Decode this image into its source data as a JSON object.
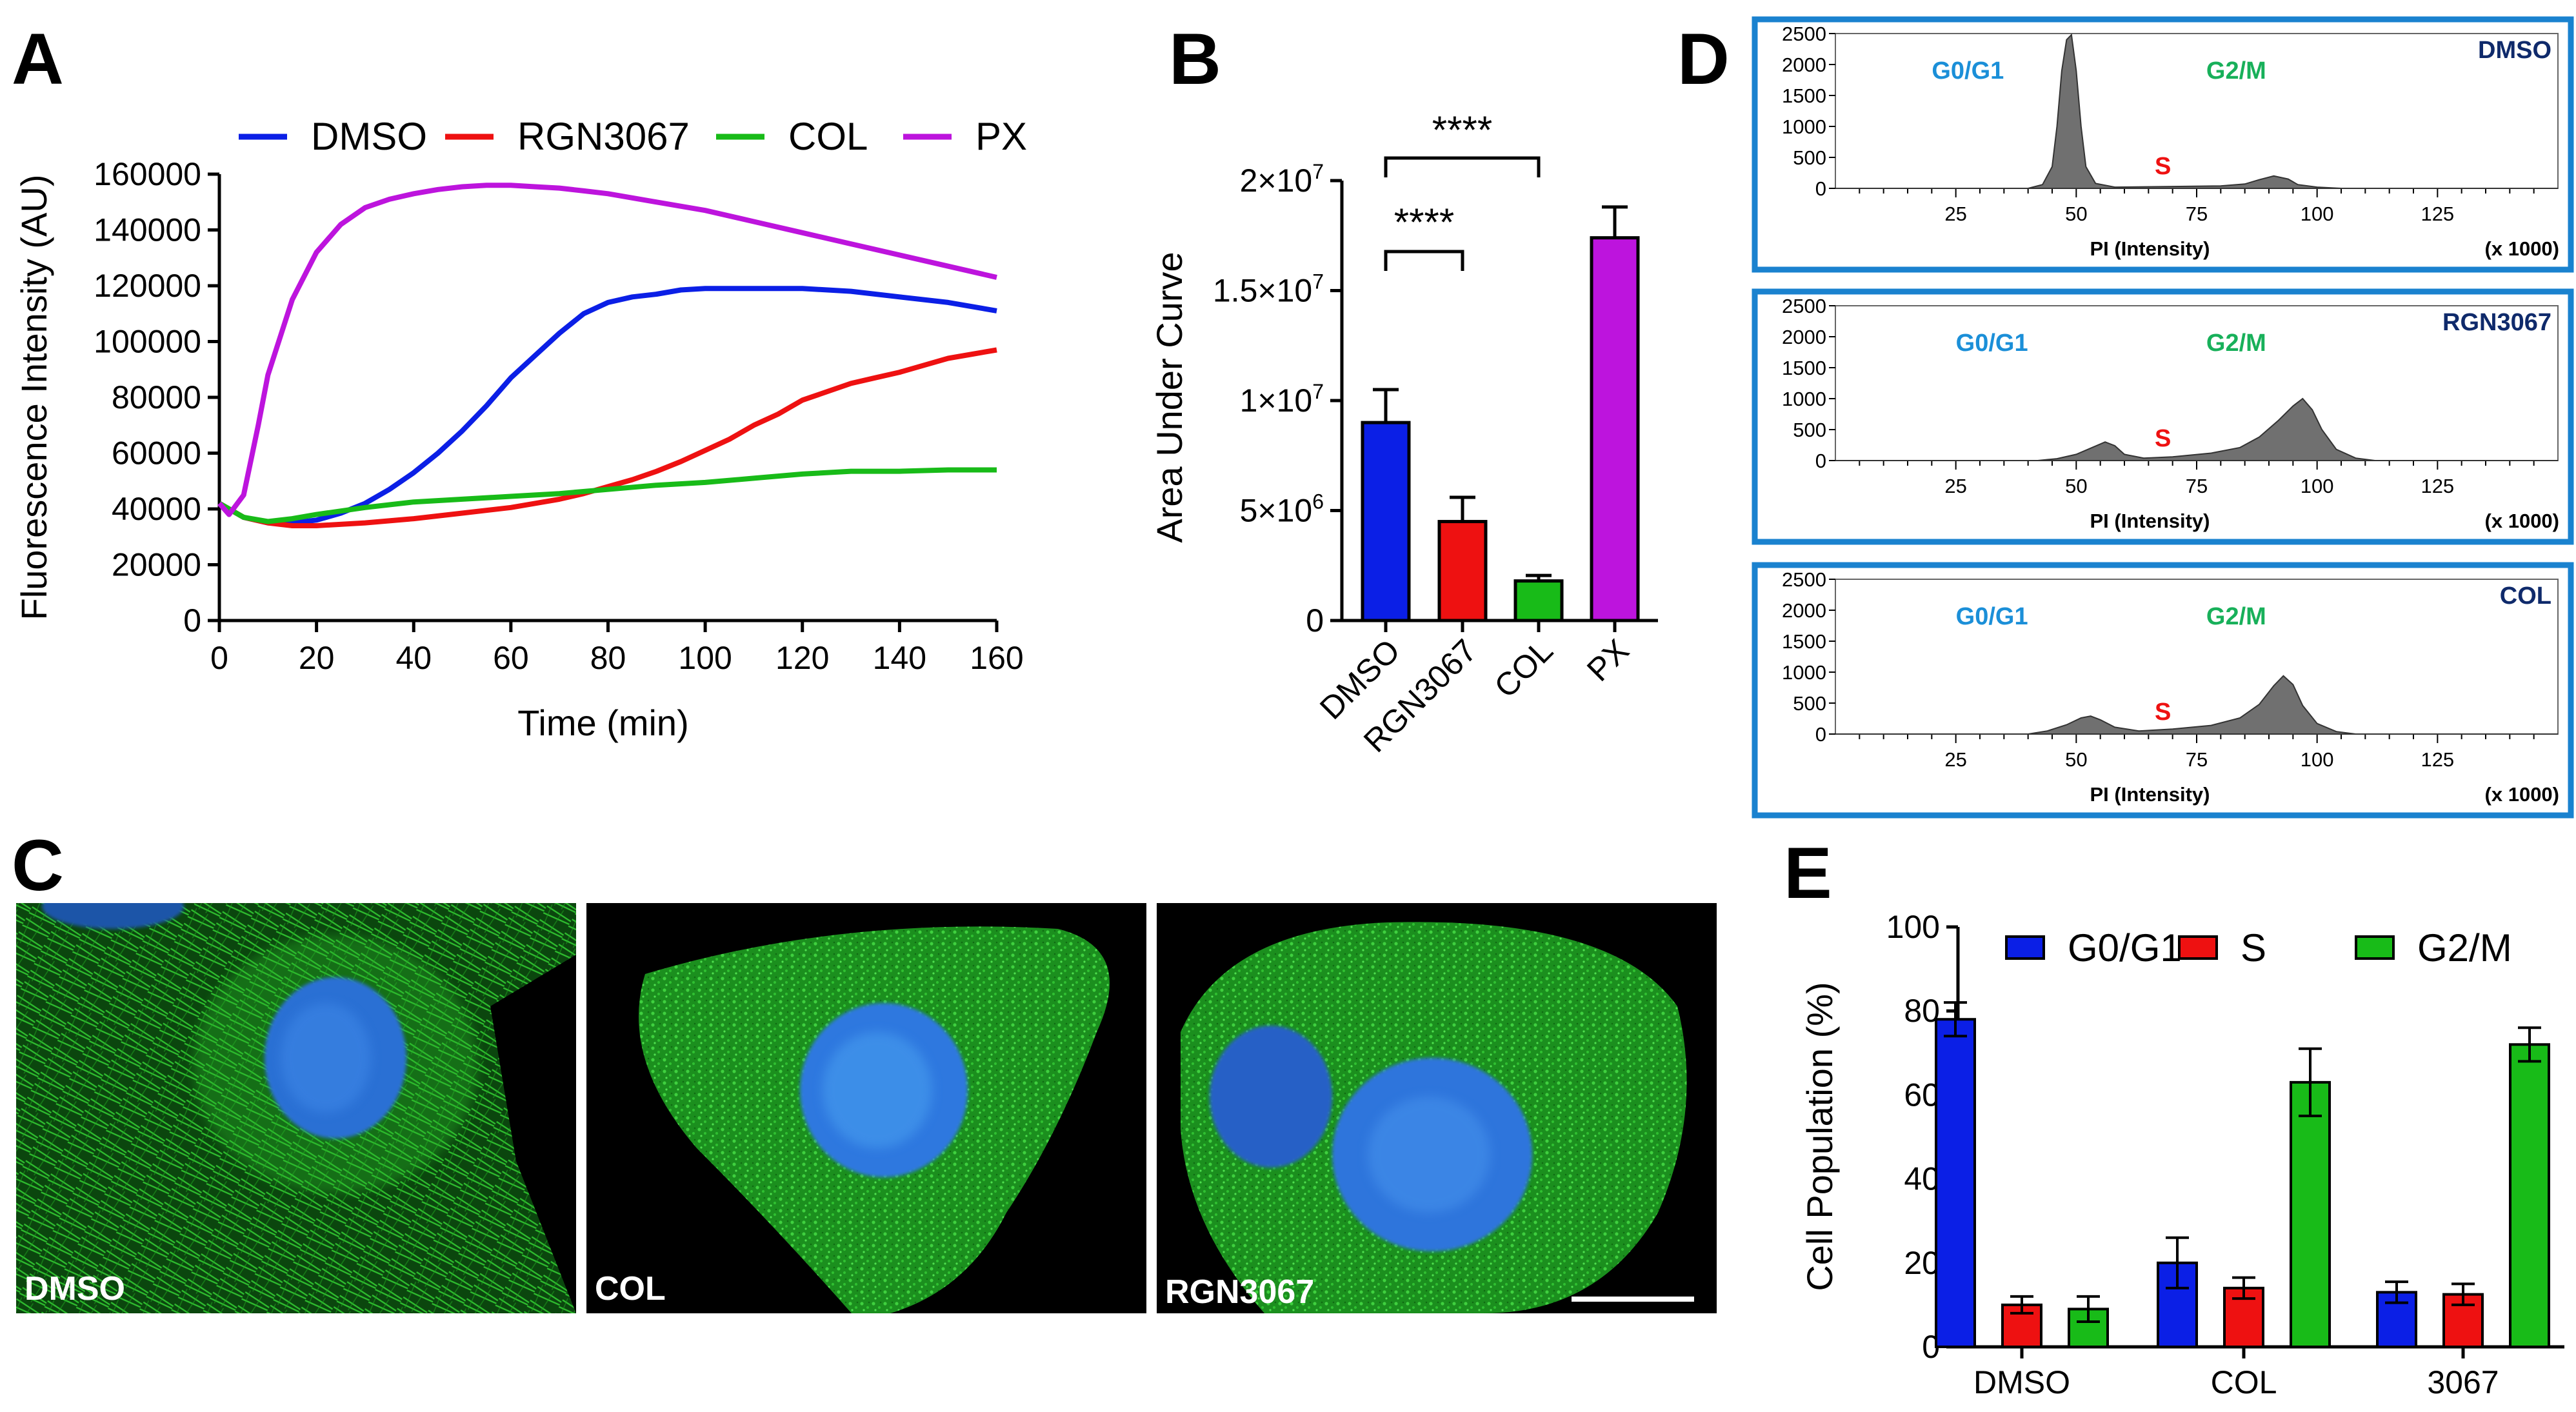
{
  "panel_letters": {
    "a": "A",
    "b": "B",
    "c": "C",
    "d": "D",
    "e": "E"
  },
  "colors": {
    "dmso": "#0b1fe6",
    "rgn": "#ee1111",
    "col": "#18bb18",
    "px": "#bd14dd",
    "hist_box": "#1a82cf",
    "g0": "#1b8fd8",
    "g2": "#18b05a",
    "s": "#ee1111",
    "tag": "#0f2a6b"
  },
  "chart_data": [
    {
      "id": "A",
      "type": "line",
      "xlabel": "Time (min)",
      "ylabel": "Fluorescence Intensity (AU)",
      "xlim": [
        0,
        160
      ],
      "ylim": [
        0,
        160000
      ],
      "x_ticks": [
        "0",
        "20",
        "40",
        "60",
        "80",
        "100",
        "120",
        "140",
        "160"
      ],
      "y_ticks": [
        "0",
        "20000",
        "40000",
        "60000",
        "80000",
        "100000",
        "120000",
        "140000",
        "160000"
      ],
      "legend": [
        "DMSO",
        "RGN3067",
        "COL",
        "PX"
      ],
      "series": [
        {
          "name": "DMSO",
          "x": [
            0,
            5,
            10,
            15,
            20,
            25,
            30,
            35,
            40,
            45,
            50,
            55,
            60,
            65,
            70,
            75,
            80,
            85,
            90,
            95,
            100,
            110,
            120,
            130,
            140,
            150,
            160
          ],
          "y": [
            42000,
            37000,
            35000,
            35000,
            36000,
            38500,
            42000,
            47000,
            53000,
            60000,
            68000,
            77000,
            87000,
            95000,
            103000,
            110000,
            114000,
            116000,
            117000,
            118500,
            119000,
            119000,
            119000,
            118000,
            116000,
            114000,
            111000
          ]
        },
        {
          "name": "RGN3067",
          "x": [
            0,
            5,
            10,
            15,
            20,
            30,
            40,
            50,
            60,
            70,
            75,
            80,
            85,
            90,
            95,
            100,
            105,
            110,
            115,
            120,
            125,
            130,
            135,
            140,
            145,
            150,
            155,
            160
          ],
          "y": [
            42000,
            37000,
            35000,
            34000,
            34000,
            35000,
            36500,
            38500,
            40500,
            43500,
            45500,
            48000,
            50500,
            53500,
            57000,
            61000,
            65000,
            70000,
            74000,
            79000,
            82000,
            85000,
            87000,
            89000,
            91500,
            94000,
            95500,
            97000
          ]
        },
        {
          "name": "COL",
          "x": [
            0,
            5,
            10,
            15,
            20,
            30,
            40,
            50,
            60,
            70,
            80,
            90,
            100,
            110,
            120,
            130,
            140,
            150,
            160
          ],
          "y": [
            42000,
            37000,
            35500,
            36500,
            38000,
            40500,
            42500,
            43500,
            44500,
            45500,
            47000,
            48500,
            49500,
            51000,
            52500,
            53500,
            53500,
            54000,
            54000
          ]
        },
        {
          "name": "PX",
          "x": [
            0,
            2,
            5,
            8,
            10,
            15,
            20,
            25,
            30,
            35,
            40,
            45,
            50,
            55,
            60,
            65,
            70,
            75,
            80,
            90,
            100,
            110,
            120,
            130,
            140,
            150,
            160
          ],
          "y": [
            42000,
            38000,
            45000,
            70000,
            88000,
            115000,
            132000,
            142000,
            148000,
            151000,
            153000,
            154500,
            155500,
            156000,
            156000,
            155500,
            155000,
            154000,
            153000,
            150000,
            147000,
            143000,
            139000,
            135000,
            131000,
            127000,
            123000
          ]
        }
      ]
    },
    {
      "id": "B",
      "type": "bar",
      "ylabel": "Area Under Curve",
      "categories": [
        "DMSO",
        "RGN3067",
        "COL",
        "PX"
      ],
      "values": [
        9000000,
        4500000,
        1800000,
        17400000
      ],
      "errors": [
        1500000,
        1100000,
        250000,
        1400000
      ],
      "ylim": [
        0,
        20000000
      ],
      "y_ticks": [
        {
          "v": 0,
          "base": "0",
          "exp": ""
        },
        {
          "v": 5000000,
          "base": "5×10",
          "exp": "6"
        },
        {
          "v": 10000000,
          "base": "1×10",
          "exp": "7"
        },
        {
          "v": 15000000,
          "base": "1.5×10",
          "exp": "7"
        },
        {
          "v": 20000000,
          "base": "2×10",
          "exp": "7"
        }
      ],
      "significance": [
        {
          "from": 0,
          "to": 1,
          "label": "****"
        },
        {
          "from": 0,
          "to": 2,
          "label": "****"
        }
      ]
    },
    {
      "id": "E",
      "type": "bar",
      "ylabel": "Cell Population (%)",
      "categories": [
        "DMSO",
        "COL",
        "3067"
      ],
      "series": [
        {
          "name": "G0/G1",
          "values": [
            78,
            20,
            13
          ],
          "errors": [
            4,
            6,
            2.5
          ]
        },
        {
          "name": "S",
          "values": [
            10,
            14,
            12.5
          ],
          "errors": [
            2,
            2.5,
            2.5
          ]
        },
        {
          "name": "G2/M",
          "values": [
            9,
            63,
            72
          ],
          "errors": [
            3,
            8,
            4
          ]
        }
      ],
      "ylim": [
        0,
        100
      ],
      "y_ticks": [
        "0",
        "20",
        "40",
        "60",
        "80",
        "100"
      ]
    }
  ],
  "histograms": {
    "x_ticks": [
      "25",
      "50",
      "75",
      "100",
      "125"
    ],
    "x_tick_values": [
      25,
      50,
      75,
      100,
      125
    ],
    "xlim": [
      0,
      150
    ],
    "y_ticks": [
      "0",
      "500",
      "1000",
      "1500",
      "2000",
      "2500"
    ],
    "y_tick_values": [
      0,
      500,
      1000,
      1500,
      2000,
      2500
    ],
    "ylim": [
      0,
      2500
    ],
    "xlabel": "PI (Intensity)",
    "scale_note": "(x 1000)",
    "phase_labels": {
      "g0": "G0/G1",
      "s": "S",
      "g2": "G2/M"
    },
    "panels": [
      {
        "name": "DMSO",
        "counts": [
          [
            0,
            0
          ],
          [
            40,
            0
          ],
          [
            43,
            60
          ],
          [
            45,
            350
          ],
          [
            46,
            1000
          ],
          [
            47,
            1900
          ],
          [
            48,
            2400
          ],
          [
            49,
            2480
          ],
          [
            50,
            1900
          ],
          [
            51,
            1000
          ],
          [
            52,
            350
          ],
          [
            54,
            80
          ],
          [
            58,
            20
          ],
          [
            70,
            30
          ],
          [
            80,
            40
          ],
          [
            85,
            70
          ],
          [
            88,
            140
          ],
          [
            91,
            200
          ],
          [
            94,
            150
          ],
          [
            96,
            60
          ],
          [
            100,
            20
          ],
          [
            105,
            0
          ],
          [
            150,
            0
          ]
        ]
      },
      {
        "name": "RGN3067",
        "counts": [
          [
            0,
            0
          ],
          [
            42,
            0
          ],
          [
            46,
            30
          ],
          [
            50,
            100
          ],
          [
            53,
            200
          ],
          [
            56,
            300
          ],
          [
            58,
            240
          ],
          [
            60,
            100
          ],
          [
            64,
            40
          ],
          [
            70,
            60
          ],
          [
            78,
            120
          ],
          [
            84,
            210
          ],
          [
            88,
            380
          ],
          [
            92,
            650
          ],
          [
            95,
            880
          ],
          [
            97,
            1000
          ],
          [
            99,
            820
          ],
          [
            101,
            500
          ],
          [
            104,
            180
          ],
          [
            108,
            40
          ],
          [
            112,
            0
          ],
          [
            150,
            0
          ]
        ]
      },
      {
        "name": "COL",
        "counts": [
          [
            0,
            0
          ],
          [
            40,
            0
          ],
          [
            44,
            50
          ],
          [
            48,
            150
          ],
          [
            51,
            260
          ],
          [
            53,
            290
          ],
          [
            55,
            230
          ],
          [
            58,
            110
          ],
          [
            63,
            50
          ],
          [
            70,
            80
          ],
          [
            78,
            140
          ],
          [
            84,
            260
          ],
          [
            88,
            480
          ],
          [
            91,
            780
          ],
          [
            93,
            940
          ],
          [
            95,
            800
          ],
          [
            97,
            460
          ],
          [
            100,
            170
          ],
          [
            104,
            40
          ],
          [
            108,
            0
          ],
          [
            150,
            0
          ]
        ]
      }
    ]
  },
  "micrographs": [
    {
      "name": "DMSO"
    },
    {
      "name": "COL"
    },
    {
      "name": "RGN3067"
    }
  ]
}
